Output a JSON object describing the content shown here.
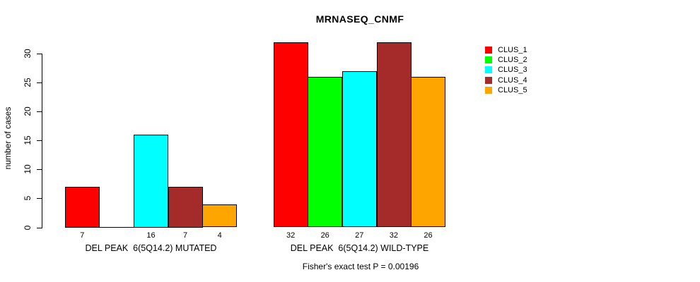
{
  "chart_data": {
    "type": "bar",
    "title": "MRNASEQ_CNMF",
    "ylabel": "number of cases",
    "xlabel": "",
    "ylim": [
      0,
      30
    ],
    "yticks": [
      0,
      5,
      10,
      15,
      20,
      25,
      30
    ],
    "grid": false,
    "legend_position": "right",
    "background_color": "#ffffff",
    "axis_color": "#000000",
    "categories": [
      "DEL PEAK  6(5Q14.2) MUTATED",
      "DEL PEAK  6(5Q14.2) WILD-TYPE"
    ],
    "series": [
      {
        "name": "CLUS_1",
        "color": "#ff0000",
        "values": [
          7,
          32
        ]
      },
      {
        "name": "CLUS_2",
        "color": "#00ff00",
        "values": [
          0,
          26
        ]
      },
      {
        "name": "CLUS_3",
        "color": "#00ffff",
        "values": [
          16,
          27
        ]
      },
      {
        "name": "CLUS_4",
        "color": "#a52a2a",
        "values": [
          7,
          32
        ]
      },
      {
        "name": "CLUS_5",
        "color": "#ffa500",
        "values": [
          4,
          26
        ]
      }
    ],
    "bar_value_labels": [
      [
        "7",
        "",
        "16",
        "7",
        "4"
      ],
      [
        "32",
        "26",
        "27",
        "32",
        "26"
      ]
    ],
    "footnote": "Fisher's exact test P = 0.00196"
  }
}
